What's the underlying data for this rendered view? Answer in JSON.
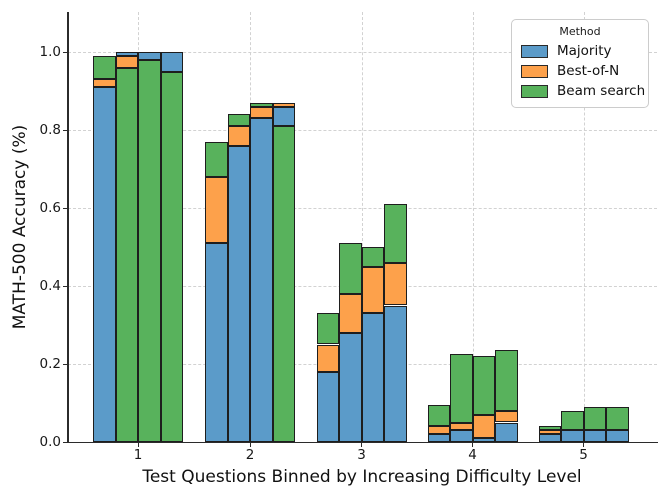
{
  "chart_data": {
    "type": "bar",
    "variant": "overlaid-bars-shortest-in-front",
    "title": "",
    "xlabel": "Test Questions Binned by Increasing Difficulty Level",
    "ylabel": "MATH-500 Accuracy (%)",
    "ylim": [
      0,
      1.1
    ],
    "grid": true,
    "yticks": [
      "0.0",
      "0.2",
      "0.4",
      "0.6",
      "0.8",
      "1.0"
    ],
    "ytick_values": [
      0.0,
      0.2,
      0.4,
      0.6,
      0.8,
      1.0
    ],
    "categories": [
      "1",
      "2",
      "3",
      "4",
      "5"
    ],
    "methods": [
      {
        "key": "majority",
        "label": "Majority",
        "color": "#5b9bc9"
      },
      {
        "key": "best_of_n",
        "label": "Best-of-N",
        "color": "#fda14b"
      },
      {
        "key": "beam_search",
        "label": "Beam search",
        "color": "#58b25c"
      }
    ],
    "legend": {
      "title": "Method",
      "position": "upper right"
    },
    "groups": [
      {
        "category": "1",
        "bars": [
          {
            "majority": 0.91,
            "best_of_n": 0.93,
            "beam_search": 0.99
          },
          {
            "majority": 1.0,
            "best_of_n": 0.99,
            "beam_search": 0.96
          },
          {
            "majority": 1.0,
            "best_of_n": 0.98,
            "beam_search": 0.98
          },
          {
            "majority": 1.0,
            "best_of_n": 0.95,
            "beam_search": 0.95
          }
        ]
      },
      {
        "category": "2",
        "bars": [
          {
            "majority": 0.51,
            "best_of_n": 0.68,
            "beam_search": 0.77
          },
          {
            "majority": 0.76,
            "best_of_n": 0.81,
            "beam_search": 0.84
          },
          {
            "majority": 0.83,
            "best_of_n": 0.86,
            "beam_search": 0.87
          },
          {
            "majority": 0.86,
            "best_of_n": 0.87,
            "beam_search": 0.81
          }
        ]
      },
      {
        "category": "3",
        "bars": [
          {
            "majority": 0.18,
            "best_of_n": 0.25,
            "beam_search": 0.33
          },
          {
            "majority": 0.28,
            "best_of_n": 0.38,
            "beam_search": 0.51
          },
          {
            "majority": 0.33,
            "best_of_n": 0.45,
            "beam_search": 0.5
          },
          {
            "majority": 0.35,
            "best_of_n": 0.46,
            "beam_search": 0.61
          }
        ]
      },
      {
        "category": "4",
        "bars": [
          {
            "majority": 0.02,
            "best_of_n": 0.04,
            "beam_search": 0.095
          },
          {
            "majority": 0.03,
            "best_of_n": 0.05,
            "beam_search": 0.225
          },
          {
            "majority": 0.01,
            "best_of_n": 0.07,
            "beam_search": 0.22
          },
          {
            "majority": 0.05,
            "best_of_n": 0.08,
            "beam_search": 0.235
          }
        ]
      },
      {
        "category": "5",
        "bars": [
          {
            "majority": 0.02,
            "best_of_n": 0.03,
            "beam_search": 0.04
          },
          {
            "majority": 0.03,
            "best_of_n": 0.03,
            "beam_search": 0.08
          },
          {
            "majority": 0.03,
            "best_of_n": 0.03,
            "beam_search": 0.09
          },
          {
            "majority": 0.03,
            "best_of_n": 0.03,
            "beam_search": 0.09
          }
        ]
      }
    ]
  },
  "colors": {
    "background": "#ffffff",
    "bar_edge": "#1e1e1e",
    "grid": "#d2d2d2",
    "spine": "#2b2b2b",
    "text": "#111111"
  }
}
